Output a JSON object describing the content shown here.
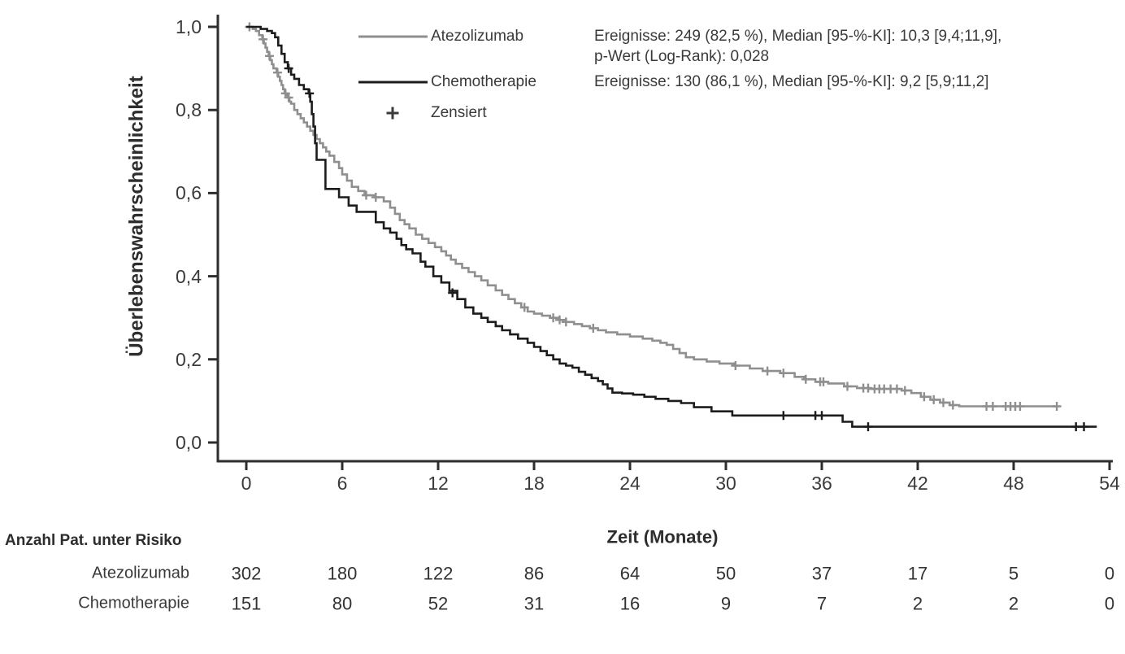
{
  "chart_data": {
    "type": "line",
    "subtype": "kaplan-meier-step",
    "title": "",
    "xlabel": "Zeit (Monate)",
    "ylabel": "Überlebenswahrscheinlichkeit",
    "xlim": [
      0,
      54
    ],
    "ylim": [
      0.0,
      1.0
    ],
    "grid": false,
    "xticks": [
      0,
      6,
      12,
      18,
      24,
      30,
      36,
      42,
      48,
      54
    ],
    "ytick_values": [
      1.0,
      0.8,
      0.6,
      0.4,
      0.2,
      0.0
    ],
    "ytick_labels": [
      "1,0",
      "0,8",
      "0,6",
      "0,4",
      "0,2",
      "0,0"
    ],
    "legend_position": "top-left-inside",
    "legend": [
      {
        "label": "Atezolizumab",
        "type": "line",
        "color": "#8F8F8F"
      },
      {
        "label": "Chemotherapie",
        "type": "line",
        "color": "#1C1C1C"
      },
      {
        "label": "Zensiert",
        "type": "marker",
        "symbol": "+",
        "color": "#3A3A3A"
      }
    ],
    "annotations": [
      "Ereignisse: 249 (82,5 %), Median [95-%-KI]: 10,3 [9,4;11,9],",
      "p-Wert (Log-Rank): 0,028",
      "Ereignisse: 130 (86,1 %), Median [95-%-KI]: 9,2 [5,9;11,2]"
    ],
    "series": [
      {
        "name": "Atezolizumab",
        "color": "#8F8F8F",
        "points": [
          [
            0,
            1.0
          ],
          [
            0.4,
            0.995
          ],
          [
            0.6,
            0.99
          ],
          [
            0.8,
            0.98
          ],
          [
            1.0,
            0.97
          ],
          [
            1.1,
            0.96
          ],
          [
            1.2,
            0.95
          ],
          [
            1.3,
            0.94
          ],
          [
            1.4,
            0.93
          ],
          [
            1.5,
            0.92
          ],
          [
            1.6,
            0.91
          ],
          [
            1.7,
            0.9
          ],
          [
            1.9,
            0.89
          ],
          [
            2.0,
            0.88
          ],
          [
            2.1,
            0.87
          ],
          [
            2.2,
            0.86
          ],
          [
            2.3,
            0.85
          ],
          [
            2.4,
            0.84
          ],
          [
            2.5,
            0.835
          ],
          [
            2.6,
            0.83
          ],
          [
            2.7,
            0.82
          ],
          [
            2.8,
            0.815
          ],
          [
            3.0,
            0.8
          ],
          [
            3.2,
            0.79
          ],
          [
            3.4,
            0.78
          ],
          [
            3.6,
            0.77
          ],
          [
            3.8,
            0.76
          ],
          [
            4.0,
            0.75
          ],
          [
            4.2,
            0.74
          ],
          [
            4.4,
            0.73
          ],
          [
            4.6,
            0.72
          ],
          [
            4.8,
            0.71
          ],
          [
            5.0,
            0.7
          ],
          [
            5.2,
            0.69
          ],
          [
            5.5,
            0.675
          ],
          [
            5.8,
            0.66
          ],
          [
            6.0,
            0.645
          ],
          [
            6.3,
            0.63
          ],
          [
            6.6,
            0.615
          ],
          [
            7.0,
            0.605
          ],
          [
            7.4,
            0.595
          ],
          [
            8.0,
            0.59
          ],
          [
            8.6,
            0.58
          ],
          [
            9.0,
            0.565
          ],
          [
            9.3,
            0.55
          ],
          [
            9.6,
            0.535
          ],
          [
            9.9,
            0.525
          ],
          [
            10.2,
            0.515
          ],
          [
            10.6,
            0.5
          ],
          [
            11.0,
            0.49
          ],
          [
            11.4,
            0.48
          ],
          [
            11.8,
            0.47
          ],
          [
            12.2,
            0.46
          ],
          [
            12.5,
            0.45
          ],
          [
            12.8,
            0.44
          ],
          [
            13.1,
            0.43
          ],
          [
            13.5,
            0.42
          ],
          [
            13.9,
            0.41
          ],
          [
            14.3,
            0.4
          ],
          [
            14.7,
            0.39
          ],
          [
            15.1,
            0.378
          ],
          [
            15.6,
            0.366
          ],
          [
            16.0,
            0.355
          ],
          [
            16.4,
            0.345
          ],
          [
            16.8,
            0.335
          ],
          [
            17.2,
            0.325
          ],
          [
            17.6,
            0.315
          ],
          [
            18.0,
            0.31
          ],
          [
            18.5,
            0.305
          ],
          [
            19.0,
            0.3
          ],
          [
            19.5,
            0.295
          ],
          [
            20.0,
            0.29
          ],
          [
            20.5,
            0.285
          ],
          [
            21.0,
            0.28
          ],
          [
            21.5,
            0.275
          ],
          [
            22.0,
            0.27
          ],
          [
            22.5,
            0.265
          ],
          [
            23.2,
            0.26
          ],
          [
            24.0,
            0.255
          ],
          [
            24.8,
            0.25
          ],
          [
            25.4,
            0.245
          ],
          [
            25.9,
            0.24
          ],
          [
            26.3,
            0.235
          ],
          [
            26.7,
            0.225
          ],
          [
            27.1,
            0.215
          ],
          [
            27.5,
            0.205
          ],
          [
            28.0,
            0.2
          ],
          [
            28.8,
            0.195
          ],
          [
            29.6,
            0.19
          ],
          [
            30.5,
            0.185
          ],
          [
            31.5,
            0.178
          ],
          [
            32.3,
            0.172
          ],
          [
            33.4,
            0.167
          ],
          [
            34.3,
            0.158
          ],
          [
            34.9,
            0.152
          ],
          [
            35.6,
            0.146
          ],
          [
            36.4,
            0.142
          ],
          [
            37.4,
            0.135
          ],
          [
            38.2,
            0.131
          ],
          [
            39.0,
            0.129
          ],
          [
            41.0,
            0.125
          ],
          [
            41.6,
            0.119
          ],
          [
            42.2,
            0.11
          ],
          [
            42.8,
            0.103
          ],
          [
            43.4,
            0.096
          ],
          [
            44.0,
            0.09
          ],
          [
            44.6,
            0.087
          ],
          [
            50.7,
            0.087
          ]
        ],
        "censors": [
          [
            0.2,
            1.0
          ],
          [
            1.05,
            0.97
          ],
          [
            1.45,
            0.93
          ],
          [
            1.95,
            0.89
          ],
          [
            2.45,
            0.84
          ],
          [
            2.65,
            0.83
          ],
          [
            7.5,
            0.595
          ],
          [
            8.1,
            0.59
          ],
          [
            17.4,
            0.325
          ],
          [
            19.2,
            0.3
          ],
          [
            19.6,
            0.295
          ],
          [
            20.0,
            0.29
          ],
          [
            21.7,
            0.275
          ],
          [
            30.6,
            0.185
          ],
          [
            32.6,
            0.172
          ],
          [
            33.6,
            0.167
          ],
          [
            35.0,
            0.152
          ],
          [
            35.9,
            0.146
          ],
          [
            36.1,
            0.146
          ],
          [
            37.6,
            0.135
          ],
          [
            38.6,
            0.131
          ],
          [
            38.9,
            0.131
          ],
          [
            39.3,
            0.129
          ],
          [
            39.6,
            0.129
          ],
          [
            39.9,
            0.129
          ],
          [
            40.3,
            0.129
          ],
          [
            40.7,
            0.129
          ],
          [
            41.2,
            0.125
          ],
          [
            42.4,
            0.11
          ],
          [
            43.0,
            0.103
          ],
          [
            43.6,
            0.096
          ],
          [
            44.2,
            0.09
          ],
          [
            46.3,
            0.087
          ],
          [
            46.7,
            0.087
          ],
          [
            47.5,
            0.087
          ],
          [
            47.8,
            0.087
          ],
          [
            48.1,
            0.087
          ],
          [
            48.4,
            0.087
          ],
          [
            50.7,
            0.087
          ]
        ]
      },
      {
        "name": "Chemotherapie",
        "color": "#1C1C1C",
        "points": [
          [
            0,
            1.0
          ],
          [
            0.9,
            0.995
          ],
          [
            1.3,
            0.99
          ],
          [
            1.6,
            0.985
          ],
          [
            1.8,
            0.975
          ],
          [
            2.0,
            0.955
          ],
          [
            2.2,
            0.935
          ],
          [
            2.4,
            0.915
          ],
          [
            2.6,
            0.9
          ],
          [
            2.8,
            0.885
          ],
          [
            3.0,
            0.875
          ],
          [
            3.3,
            0.86
          ],
          [
            3.6,
            0.85
          ],
          [
            3.9,
            0.84
          ],
          [
            4.0,
            0.82
          ],
          [
            4.1,
            0.79
          ],
          [
            4.2,
            0.76
          ],
          [
            4.3,
            0.72
          ],
          [
            4.4,
            0.68
          ],
          [
            4.95,
            0.61
          ],
          [
            5.8,
            0.59
          ],
          [
            6.4,
            0.57
          ],
          [
            6.9,
            0.555
          ],
          [
            8.1,
            0.53
          ],
          [
            8.6,
            0.515
          ],
          [
            9.0,
            0.505
          ],
          [
            9.4,
            0.49
          ],
          [
            9.7,
            0.475
          ],
          [
            10.0,
            0.465
          ],
          [
            10.4,
            0.455
          ],
          [
            10.9,
            0.435
          ],
          [
            11.2,
            0.423
          ],
          [
            11.7,
            0.4
          ],
          [
            12.2,
            0.385
          ],
          [
            12.7,
            0.365
          ],
          [
            13.2,
            0.345
          ],
          [
            13.7,
            0.325
          ],
          [
            14.2,
            0.31
          ],
          [
            14.7,
            0.3
          ],
          [
            15.1,
            0.29
          ],
          [
            15.6,
            0.28
          ],
          [
            16.0,
            0.27
          ],
          [
            16.5,
            0.26
          ],
          [
            17.0,
            0.25
          ],
          [
            17.6,
            0.24
          ],
          [
            18.0,
            0.23
          ],
          [
            18.4,
            0.22
          ],
          [
            18.8,
            0.21
          ],
          [
            19.2,
            0.2
          ],
          [
            19.6,
            0.19
          ],
          [
            20.0,
            0.185
          ],
          [
            20.4,
            0.18
          ],
          [
            20.8,
            0.17
          ],
          [
            21.2,
            0.163
          ],
          [
            21.6,
            0.155
          ],
          [
            22.0,
            0.148
          ],
          [
            22.3,
            0.14
          ],
          [
            22.6,
            0.13
          ],
          [
            22.9,
            0.12
          ],
          [
            23.5,
            0.118
          ],
          [
            24.2,
            0.115
          ],
          [
            24.9,
            0.11
          ],
          [
            25.6,
            0.105
          ],
          [
            26.4,
            0.1
          ],
          [
            27.2,
            0.095
          ],
          [
            28.0,
            0.085
          ],
          [
            29.1,
            0.075
          ],
          [
            30.4,
            0.065
          ],
          [
            37.3,
            0.05
          ],
          [
            37.9,
            0.038
          ],
          [
            53.2,
            0.038
          ]
        ],
        "censors": [
          [
            2.65,
            0.9
          ],
          [
            3.95,
            0.84
          ],
          [
            12.9,
            0.36
          ],
          [
            33.6,
            0.065
          ],
          [
            35.6,
            0.065
          ],
          [
            36.0,
            0.065
          ],
          [
            38.9,
            0.038
          ],
          [
            51.9,
            0.038
          ],
          [
            52.4,
            0.038
          ]
        ]
      }
    ]
  },
  "risk_table": {
    "header": "Anzahl Pat. unter Risiko",
    "time_points": [
      0,
      6,
      12,
      18,
      24,
      30,
      36,
      42,
      48,
      54
    ],
    "rows": [
      {
        "label": "Atezolizumab",
        "values": [
          302,
          180,
          122,
          86,
          64,
          50,
          37,
          17,
          5,
          0
        ]
      },
      {
        "label": "Chemotherapie",
        "values": [
          151,
          80,
          52,
          31,
          16,
          9,
          7,
          2,
          2,
          0
        ]
      }
    ]
  },
  "style": {
    "background": "#FFFFFF",
    "axis_color": "#2E2E2E",
    "text_color": "#3A3A3A",
    "atezolizumab_color": "#8F8F8F",
    "chemotherapie_color": "#1C1C1C"
  }
}
